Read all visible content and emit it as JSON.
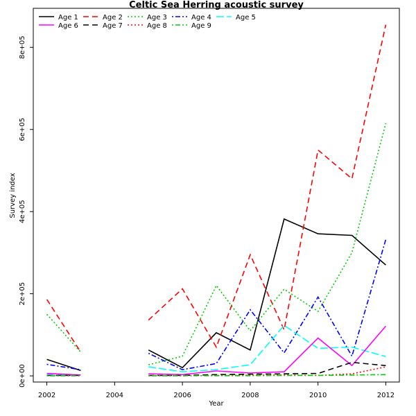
{
  "chart_data": {
    "type": "line",
    "title": "Celtic Sea Herring acoustic survey",
    "xlabel": "Year",
    "ylabel": "Survey index",
    "xlim": [
      2001.6,
      2012.4
    ],
    "ylim": [
      -15000,
      895000
    ],
    "x_ticks": [
      2002,
      2004,
      2006,
      2008,
      2010,
      2012
    ],
    "y_ticks": [
      0,
      200000,
      400000,
      600000,
      800000
    ],
    "y_tick_labels": [
      "0e+00",
      "2e+05",
      "4e+05",
      "6e+05",
      "8e+05"
    ],
    "grid": false,
    "legend_position": "top-left",
    "x": [
      2002,
      2003,
      2004,
      2005,
      2006,
      2007,
      2008,
      2009,
      2010,
      2011,
      2012
    ],
    "series": [
      {
        "name": "Age 1",
        "color": "#000000",
        "dash": "solid",
        "values": [
          40000,
          13000,
          null,
          63000,
          20000,
          105000,
          63000,
          382000,
          346000,
          342000,
          270000
        ]
      },
      {
        "name": "Age 2",
        "color": "#ff0000",
        "dash": "dashed",
        "values": [
          186000,
          58000,
          null,
          136000,
          212000,
          70000,
          295000,
          112000,
          550000,
          480000,
          855000
        ]
      },
      {
        "name": "Age 3",
        "color": "#00cd00",
        "dash": "dotted",
        "values": [
          150000,
          58000,
          null,
          27000,
          48000,
          220000,
          110000,
          211000,
          157000,
          300000,
          615000
        ]
      },
      {
        "name": "Age 4",
        "color": "#0000ff",
        "dash": "dotdash",
        "values": [
          28000,
          15000,
          null,
          55000,
          15000,
          30000,
          161000,
          56000,
          192000,
          48000,
          332000
        ]
      },
      {
        "name": "Age 5",
        "color": "#00ffff",
        "dash": "longdash",
        "values": [
          4000,
          2000,
          null,
          22000,
          10000,
          15000,
          27000,
          123000,
          67000,
          70000,
          47000
        ]
      },
      {
        "name": "Age 6",
        "color": "#ff00ff",
        "dash": "solid",
        "values": [
          6000,
          2000,
          null,
          5000,
          3000,
          12000,
          7000,
          10000,
          92000,
          25000,
          121000
        ]
      },
      {
        "name": "Age 7",
        "color": "#000000",
        "dash": "dashed",
        "values": [
          1000,
          1000,
          null,
          1000,
          1000,
          3000,
          4000,
          5000,
          6000,
          33000,
          25000
        ]
      },
      {
        "name": "Age 8",
        "color": "#ff0000",
        "dash": "dotted",
        "values": [
          500,
          500,
          null,
          500,
          500,
          1000,
          1500,
          2000,
          1000,
          5000,
          22000
        ]
      },
      {
        "name": "Age 9",
        "color": "#00cd00",
        "dash": "dotdash",
        "values": [
          300,
          300,
          null,
          300,
          300,
          500,
          500,
          1000,
          1000,
          2000,
          3000
        ]
      }
    ]
  }
}
